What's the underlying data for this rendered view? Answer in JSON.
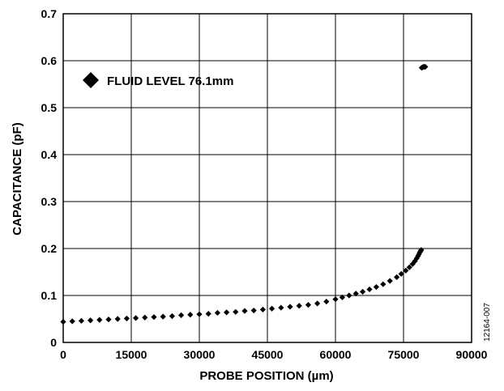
{
  "chart_data": {
    "type": "scatter",
    "xlabel": "PROBE POSITION (µm)",
    "ylabel": "CAPACITANCE (pF)",
    "xlim": [
      0,
      90000
    ],
    "ylim": [
      0,
      0.7
    ],
    "x_ticks": [
      "0",
      "15000",
      "30000",
      "45000",
      "60000",
      "75000",
      "90000"
    ],
    "y_ticks": [
      "0",
      "0.1",
      "0.2",
      "0.3",
      "0.4",
      "0.5",
      "0.6",
      "0.7"
    ],
    "grid": true,
    "legend_position": "top-left",
    "series": [
      {
        "name": "FLUID LEVEL 76.1mm",
        "marker": "diamond",
        "color": "#000000",
        "points": [
          [
            0,
            0.044
          ],
          [
            2000,
            0.045
          ],
          [
            4000,
            0.046
          ],
          [
            6000,
            0.047
          ],
          [
            8000,
            0.048
          ],
          [
            10000,
            0.049
          ],
          [
            12000,
            0.05
          ],
          [
            14000,
            0.051
          ],
          [
            16000,
            0.052
          ],
          [
            18000,
            0.053
          ],
          [
            20000,
            0.054
          ],
          [
            22000,
            0.055
          ],
          [
            24000,
            0.056
          ],
          [
            26000,
            0.058
          ],
          [
            28000,
            0.059
          ],
          [
            30000,
            0.06
          ],
          [
            32000,
            0.061
          ],
          [
            34000,
            0.063
          ],
          [
            36000,
            0.064
          ],
          [
            38000,
            0.065
          ],
          [
            40000,
            0.067
          ],
          [
            42000,
            0.068
          ],
          [
            44000,
            0.07
          ],
          [
            46000,
            0.072
          ],
          [
            48000,
            0.074
          ],
          [
            50000,
            0.076
          ],
          [
            52000,
            0.078
          ],
          [
            54000,
            0.08
          ],
          [
            56000,
            0.083
          ],
          [
            58000,
            0.087
          ],
          [
            60000,
            0.092
          ],
          [
            61500,
            0.096
          ],
          [
            63000,
            0.1
          ],
          [
            64500,
            0.104
          ],
          [
            66000,
            0.108
          ],
          [
            67500,
            0.113
          ],
          [
            69000,
            0.118
          ],
          [
            70500,
            0.124
          ],
          [
            72000,
            0.131
          ],
          [
            73500,
            0.139
          ],
          [
            74500,
            0.146
          ],
          [
            75500,
            0.153
          ],
          [
            76300,
            0.16
          ],
          [
            77000,
            0.167
          ],
          [
            77500,
            0.173
          ],
          [
            77900,
            0.179
          ],
          [
            78200,
            0.184
          ],
          [
            78400,
            0.188
          ],
          [
            78600,
            0.192
          ],
          [
            78800,
            0.195
          ],
          [
            78900,
            0.197
          ],
          [
            79000,
            0.585
          ],
          [
            79200,
            0.586
          ],
          [
            79400,
            0.587
          ],
          [
            79600,
            0.587
          ],
          [
            79800,
            0.587
          ]
        ]
      }
    ]
  },
  "figure_id": "12164-007"
}
